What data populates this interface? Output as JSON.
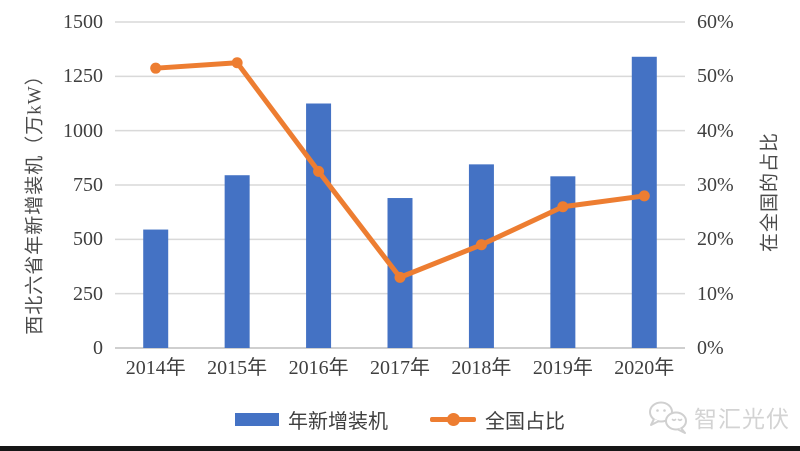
{
  "chart_data": {
    "type": "combo",
    "categories": [
      "2014年",
      "2015年",
      "2016年",
      "2017年",
      "2018年",
      "2019年",
      "2020年"
    ],
    "series": [
      {
        "name": "年新增装机",
        "type": "bar",
        "axis": "left",
        "color": "#4472C4",
        "values": [
          545,
          795,
          1125,
          690,
          845,
          790,
          1340
        ]
      },
      {
        "name": "全国占比",
        "type": "line",
        "axis": "right",
        "color": "#ED7D31",
        "values": [
          51.5,
          52.5,
          32.5,
          13,
          19,
          26,
          28
        ]
      }
    ],
    "left_axis": {
      "title": "西北六省年新增装机（万kW）",
      "min": 0,
      "max": 1500,
      "step": 250,
      "tick_labels": [
        "0",
        "250",
        "500",
        "750",
        "1000",
        "1250",
        "1500"
      ]
    },
    "right_axis": {
      "title": "在全国的占比",
      "min": 0,
      "max": 60,
      "step": 10,
      "tick_labels": [
        "0%",
        "10%",
        "20%",
        "30%",
        "40%",
        "50%",
        "60%"
      ]
    },
    "grid": true,
    "legend_position": "bottom"
  },
  "watermark": {
    "text": "智汇光伏"
  },
  "colors": {
    "bar": "#4472C4",
    "line": "#ED7D31",
    "grid": "#D9D9D9",
    "baseline": "#BFBFBF",
    "axis_text": "#3F3F3F"
  }
}
